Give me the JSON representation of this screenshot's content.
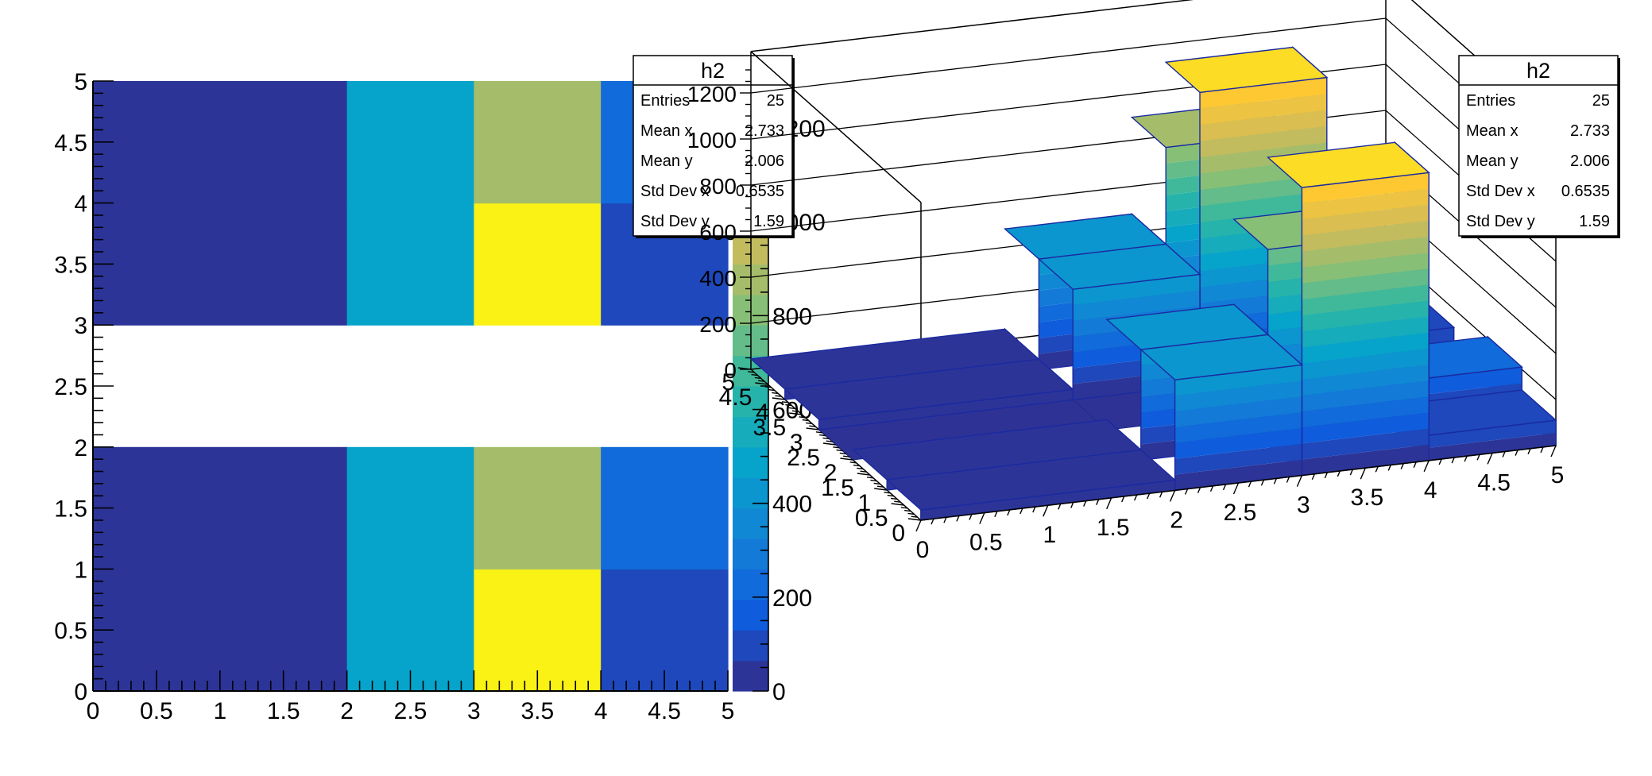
{
  "chart_data": [
    {
      "type": "heatmap",
      "title": "",
      "xlabel": "",
      "ylabel": "",
      "xlim": [
        0,
        5
      ],
      "ylim": [
        0,
        5
      ],
      "x_edges": [
        0,
        2,
        3,
        4,
        5
      ],
      "y_edges": [
        0,
        1,
        2,
        3,
        4,
        5
      ],
      "x_ticks": [
        "0",
        "0.5",
        "1",
        "1.5",
        "2",
        "2.5",
        "3",
        "3.5",
        "4",
        "4.5",
        "5"
      ],
      "y_ticks": [
        "0",
        "0.5",
        "1",
        "1.5",
        "2",
        "2.5",
        "3",
        "3.5",
        "4",
        "4.5",
        "5"
      ],
      "cells": [
        [
          45,
          480,
          1250,
          110
        ],
        [
          45,
          480,
          850,
          210
        ],
        [
          null,
          null,
          null,
          null
        ],
        [
          45,
          480,
          1270,
          120
        ],
        [
          45,
          480,
          900,
          230
        ]
      ],
      "zlim": [
        0,
        1300
      ],
      "colorbar_ticks": [
        "0",
        "200",
        "400",
        "600",
        "800",
        "1000",
        "1200"
      ],
      "palette": "kBird",
      "stats_box": {
        "name": "h2",
        "rows": [
          {
            "label": "Entries",
            "value": "25"
          },
          {
            "label": "Mean x",
            "value": "2.733"
          },
          {
            "label": "Mean y",
            "value": "2.006"
          },
          {
            "label": "Std Dev x",
            "value": "0.6535"
          },
          {
            "label": "Std Dev y",
            "value": "1.59"
          }
        ]
      }
    },
    {
      "type": "lego",
      "title": "",
      "xlabel": "",
      "ylabel": "",
      "zlabel": "",
      "xlim": [
        0,
        5
      ],
      "ylim": [
        0,
        5
      ],
      "zlim": [
        0,
        1380
      ],
      "x_ticks": [
        "0",
        "0.5",
        "1",
        "1.5",
        "2",
        "2.5",
        "3",
        "3.5",
        "4",
        "4.5",
        "5"
      ],
      "y_ticks": [
        "0",
        "0.5",
        "1",
        "1.5",
        "2",
        "2.5",
        "3",
        "3.5",
        "4",
        "4.5",
        "5"
      ],
      "z_ticks": [
        "0",
        "200",
        "400",
        "600",
        "800",
        "1000",
        "1200"
      ],
      "stats_box": {
        "name": "h2",
        "rows": [
          {
            "label": "Entries",
            "value": "25"
          },
          {
            "label": "Mean x",
            "value": "2.733"
          },
          {
            "label": "Mean y",
            "value": "2.006"
          },
          {
            "label": "Std Dev x",
            "value": "0.6535"
          },
          {
            "label": "Std Dev y",
            "value": "1.59"
          }
        ]
      }
    }
  ]
}
